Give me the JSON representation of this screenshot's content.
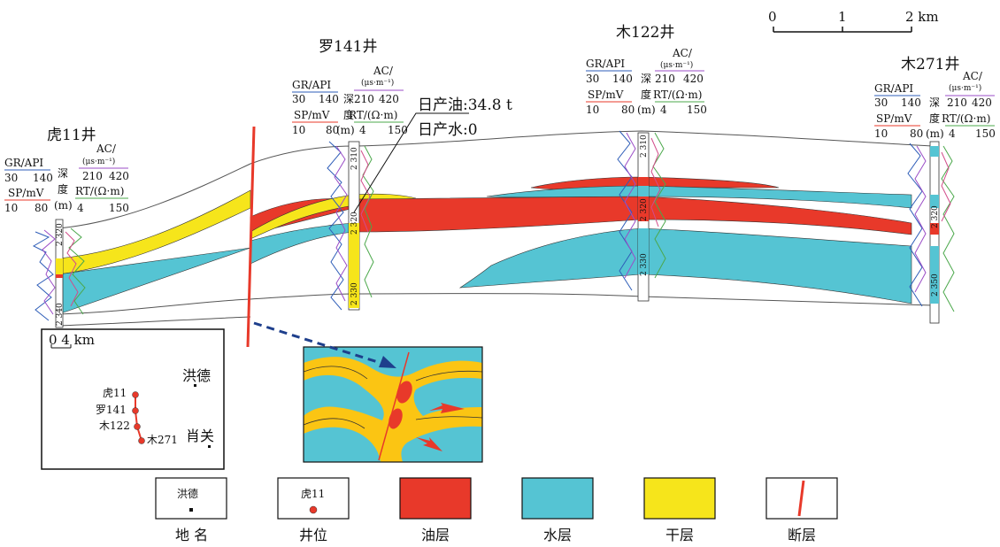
{
  "scale_bar": {
    "ticks": [
      "0",
      "1",
      "2 km"
    ]
  },
  "wells": [
    {
      "name": "虎11井"
    },
    {
      "name": "罗141井"
    },
    {
      "name": "木122井"
    },
    {
      "name": "木271井"
    }
  ],
  "log_header": {
    "gr": "GR/API",
    "gr_min": "30",
    "gr_max": "140",
    "sp": "SP/mV",
    "sp_min": "10",
    "sp_max": "80",
    "depth_1": "深",
    "depth_2": "度",
    "depth_unit": "(m)",
    "ac": "AC/",
    "ac_unit": "(μs·m⁻¹)",
    "ac_min": "210",
    "ac_max": "420",
    "rt": "RT/(Ω·m)",
    "rt_min": "4",
    "rt_max": "150"
  },
  "depth_labels": {
    "well1_a": "2 320",
    "well1_b": "2 340",
    "well2_a": "2 310",
    "well2_b": "2 320",
    "well2_c": "2 330",
    "well3_a": "2 310",
    "well3_b": "2 320",
    "well3_c": "2 330",
    "well4_a": "2 320",
    "well4_b": "2 350"
  },
  "production": {
    "oil": "日产油:34.8 t",
    "water": "日产水:0"
  },
  "inset_map": {
    "scale": "0    4 km",
    "town_1": "洪德",
    "town_2": "肖关",
    "wells": [
      "虎11",
      "罗141",
      "木122",
      "木271"
    ]
  },
  "legend": [
    {
      "label": "地 名",
      "sample": "洪德"
    },
    {
      "label": "井位",
      "sample": "虎11"
    },
    {
      "label": "油层",
      "color": "#E8392A"
    },
    {
      "label": "水层",
      "color": "#55C4D3"
    },
    {
      "label": "干层",
      "color": "#F6E51B"
    },
    {
      "label": "断层",
      "color": "#E8392A"
    }
  ],
  "colors": {
    "oil": "#E8392A",
    "water": "#55C4D3",
    "dry": "#F6E51B",
    "fault": "#E8392A",
    "arrow": "#1E3F8C"
  }
}
